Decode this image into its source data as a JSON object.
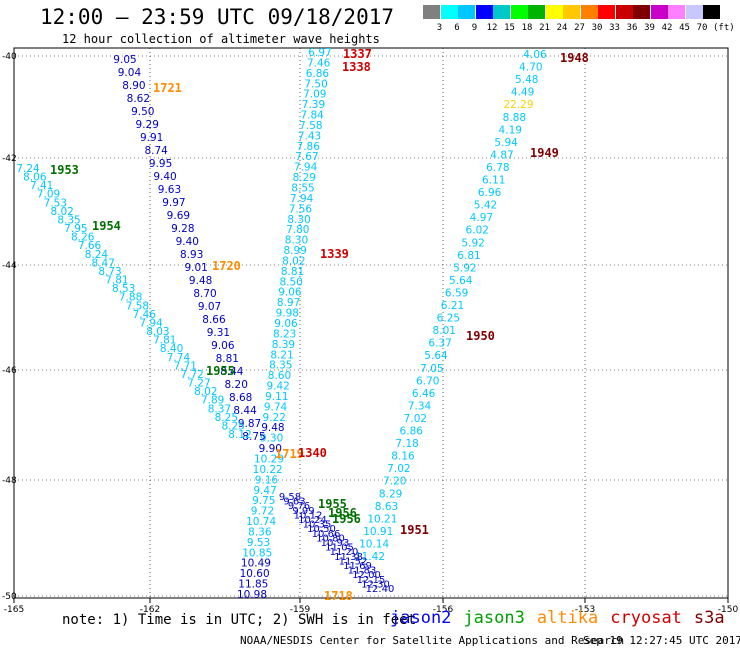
{
  "header": {
    "title": "12:00 – 23:59 UTC 09/18/2017",
    "subtitle": "12 hour collection of altimeter wave heights"
  },
  "legend": {
    "colors": [
      "#808080",
      "#00ffff",
      "#00c8ff",
      "#0000ff",
      "#00c8c8",
      "#00ff00",
      "#00b400",
      "#ffff00",
      "#ffc800",
      "#ff8000",
      "#ff0000",
      "#c80000",
      "#800000",
      "#c800c8",
      "#ff80ff",
      "#c8c8ff",
      "#000000"
    ],
    "labels": [
      "3",
      "6",
      "9",
      "12",
      "15",
      "18",
      "21",
      "24",
      "27",
      "30",
      "33",
      "36",
      "39",
      "42",
      "45",
      "70",
      "(ft)"
    ]
  },
  "axes": {
    "lon_labels": [
      "-165",
      "-162",
      "-159",
      "-156",
      "-153",
      "-150"
    ],
    "lat_labels": [
      "-40",
      "-42",
      "-44",
      "-46",
      "-48",
      "-50"
    ]
  },
  "tracks": [
    {
      "values": [
        "6.97",
        "7.46",
        "6.86",
        "7.50",
        "7.09",
        "7.39",
        "7.84",
        "7.58",
        "7.43",
        "7.86",
        "7.67",
        "7.94",
        "8.29",
        "8.55",
        "7.94",
        "7.56",
        "8.30",
        "7.80",
        "8.30",
        "8.99",
        "8.02",
        "8.81",
        "8.50",
        "9.06",
        "8.97",
        "9.98",
        "9.06",
        "8.23",
        "8.39",
        "8.21",
        "8.35",
        "8.60",
        "9.42",
        "9.11",
        "9.74",
        "9.22",
        "9.48",
        "9.30",
        "9.90",
        "10.29",
        "10.22",
        "9.16",
        "9.47",
        "9.75",
        "9.72",
        "10.74",
        "8.36",
        "9.53",
        "10.85",
        "10.49",
        "10.60",
        "11.85",
        "10.98"
      ]
    },
    {
      "values": [
        "9.05",
        "9.04",
        "8.90",
        "8.62",
        "9.50",
        "9.29",
        "9.91",
        "8.74",
        "9.95",
        "9.40",
        "9.63",
        "9.97",
        "9.69",
        "9.28",
        "9.40",
        "8.93",
        "9.01",
        "9.48",
        "8.70",
        "9.07",
        "8.66",
        "9.31",
        "9.06",
        "8.81",
        "8.44",
        "8.20",
        "8.68",
        "8.44",
        "9.87",
        "8.75"
      ]
    },
    {
      "values": [
        "7.24",
        "8.06",
        "7.41",
        "7.09",
        "7.53",
        "8.02",
        "8.35",
        "7.95",
        "8.26",
        "7.66",
        "8.24",
        "8.47",
        "8.73",
        "7.81",
        "8.53",
        "7.88",
        "7.58",
        "7.46",
        "7.94",
        "8.03",
        "7.81",
        "8.40",
        "7.74",
        "7.71",
        "7.72",
        "7.27",
        "8.02",
        "7.89",
        "8.37",
        "8.25",
        "8.25",
        "8.12"
      ]
    },
    {
      "values": [
        "4.06",
        "4.70",
        "5.48",
        "4.49",
        "22.29",
        "8.88",
        "4.19",
        "5.94",
        "4.87",
        "6.78",
        "6.11",
        "6.96",
        "5.42",
        "4.97",
        "6.02",
        "5.92",
        "6.81",
        "5.92",
        "5.64",
        "6.59",
        "6.21",
        "6.25",
        "8.01",
        "6.37",
        "5.64",
        "7.05",
        "6.70",
        "6.46",
        "7.34",
        "7.02",
        "6.86",
        "7.18",
        "8.16",
        "7.02",
        "7.20",
        "8.29",
        "8.63",
        "10.21",
        "10.91",
        "10.14",
        "11.42"
      ]
    },
    {
      "values": [
        "9.58",
        "9.63",
        "9.76",
        "9.99",
        "10.12",
        "10.24",
        "10.35",
        "10.50",
        "10.66",
        "10.80",
        "10.93",
        "11.05",
        "11.20",
        "11.38",
        "11.52",
        "11.69",
        "11.83",
        "12.00",
        "12.15",
        "12.30",
        "12.40"
      ]
    }
  ],
  "time_labels": [
    {
      "text": "1337",
      "color": "#d00000"
    },
    {
      "text": "1338",
      "color": "#d00000"
    },
    {
      "text": "1948",
      "color": "#800000"
    },
    {
      "text": "1721",
      "color": "#ff8c00"
    },
    {
      "text": "1949",
      "color": "#800000"
    },
    {
      "text": "1953",
      "color": "#007000"
    },
    {
      "text": "1954",
      "color": "#007000"
    },
    {
      "text": "1720",
      "color": "#ff8c00"
    },
    {
      "text": "1339",
      "color": "#d00000"
    },
    {
      "text": "1950",
      "color": "#800000"
    },
    {
      "text": "1955",
      "color": "#007000"
    },
    {
      "text": "1719",
      "color": "#ff8c00"
    },
    {
      "text": "1340",
      "color": "#d00000"
    },
    {
      "text": "1955",
      "color": "#007000"
    },
    {
      "text": "1956",
      "color": "#007000"
    },
    {
      "text": "1956",
      "color": "#007000"
    },
    {
      "text": "1951",
      "color": "#800000"
    },
    {
      "text": "1718",
      "color": "#ff8c00"
    }
  ],
  "footer": {
    "note": "note: 1) Time is in UTC; 2) SWH is in feet",
    "satellites": [
      {
        "name": "jason2",
        "color": "#0000ff"
      },
      {
        "name": "jason3",
        "color": "#00a000"
      },
      {
        "name": "altika",
        "color": "#ff8c00"
      },
      {
        "name": "cryosat",
        "color": "#d00000"
      },
      {
        "name": "s3a",
        "color": "#800000"
      }
    ],
    "credit": "NOAA/NESDIS Center for Satellite Applications and Research",
    "timestamp": "Sep 19 12:27:45 UTC 2017"
  }
}
